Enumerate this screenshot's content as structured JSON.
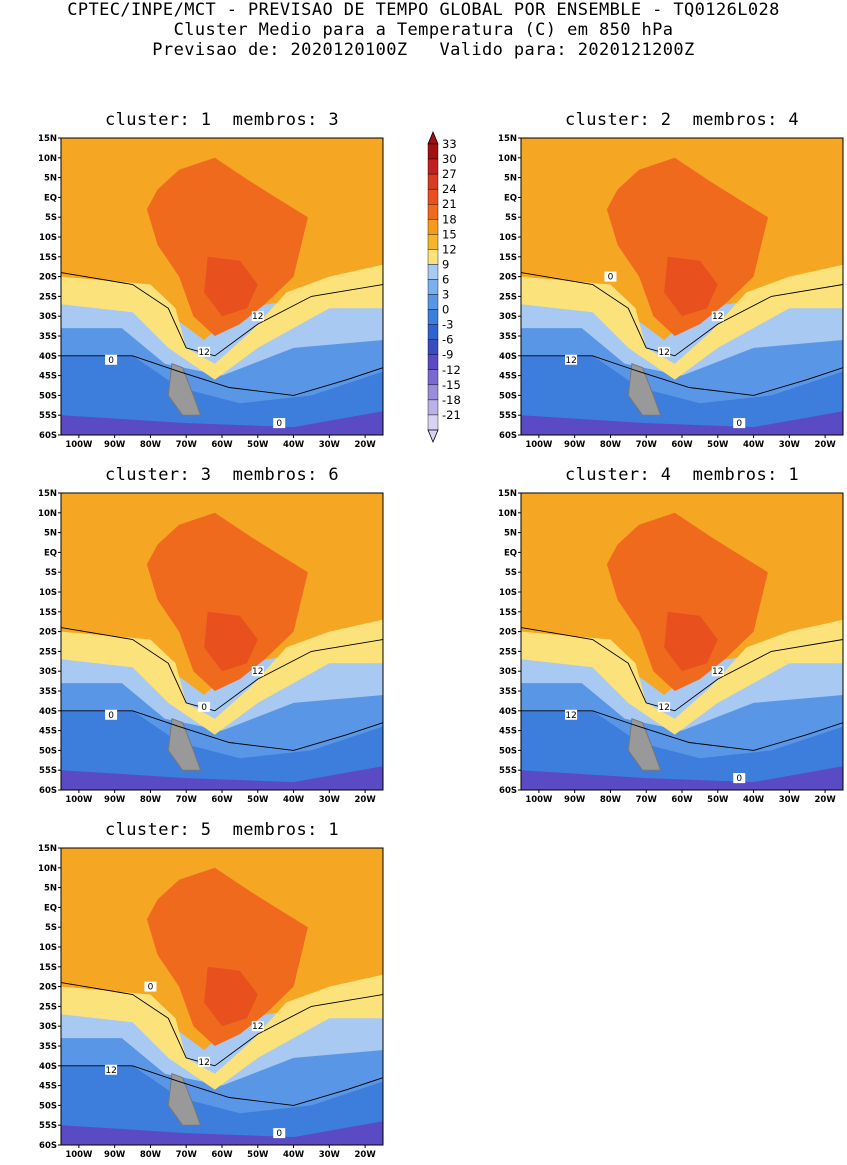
{
  "header": {
    "line1": "CPTEC/INPE/MCT - PREVISAO DE TEMPO GLOBAL POR ENSEMBLE - TQ0126L028",
    "line2": "Cluster Medio para a Temperatura (C) em 850 hPa",
    "line3": "Previsao de: 2020120100Z   Valido para: 2020121200Z"
  },
  "colorbar": {
    "labels": [
      "33",
      "30",
      "27",
      "24",
      "21",
      "18",
      "15",
      "12",
      "9",
      "6",
      "3",
      "0",
      "-3",
      "-6",
      "-9",
      "-12",
      "-15",
      "-18",
      "-21"
    ],
    "colors": [
      "#a01010",
      "#c02020",
      "#d83a22",
      "#e8501e",
      "#f06a1e",
      "#f59a1a",
      "#f7b32a",
      "#fce27a",
      "#a8c9f2",
      "#7bb0ee",
      "#5a96e6",
      "#3d7ddc",
      "#2f63cf",
      "#3b4cc0",
      "#5a4ac4",
      "#7a6ad0",
      "#9a8ddc",
      "#bbb0e8",
      "#d9d2f3"
    ]
  },
  "map": {
    "lat_labels": [
      "15N",
      "10N",
      "5N",
      "EQ",
      "5S",
      "10S",
      "15S",
      "20S",
      "25S",
      "30S",
      "35S",
      "40S",
      "45S",
      "50S",
      "55S",
      "60S"
    ],
    "lon_labels": [
      "100W",
      "90W",
      "80W",
      "70W",
      "60W",
      "50W",
      "40W",
      "30W",
      "20W"
    ]
  },
  "panels": [
    {
      "title": "cluster: 1  membros: 3",
      "contours": [
        "12",
        "12",
        "0",
        "0"
      ]
    },
    {
      "title": "cluster: 2  membros: 4",
      "contours": [
        "12",
        "12",
        "12",
        "0",
        "0"
      ]
    },
    {
      "title": "cluster: 3  membros: 6",
      "contours": [
        "12",
        "0",
        "0"
      ]
    },
    {
      "title": "cluster: 4  membros: 1",
      "contours": [
        "12",
        "12",
        "12",
        "0"
      ]
    },
    {
      "title": "cluster: 5  membros: 1",
      "contours": [
        "12",
        "12",
        "12",
        "0",
        "0"
      ]
    }
  ]
}
